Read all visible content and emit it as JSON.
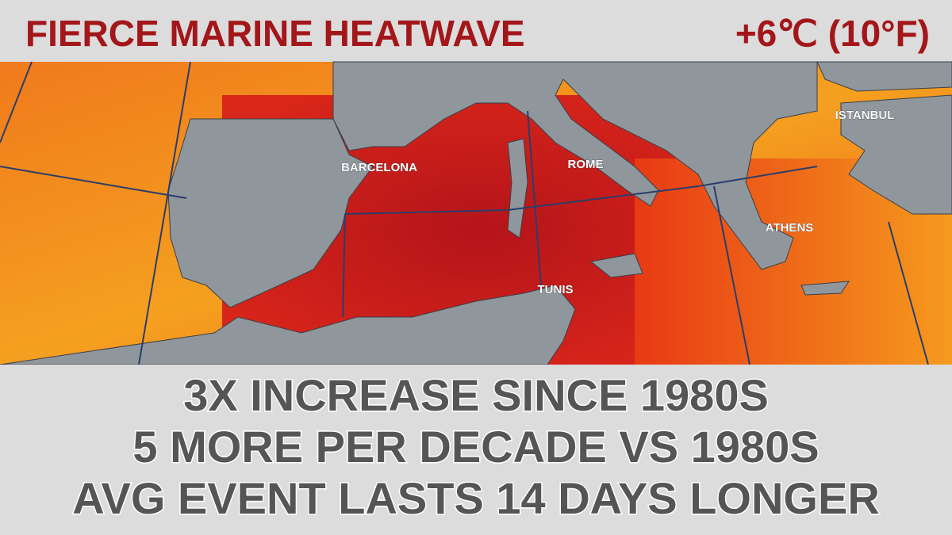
{
  "header": {
    "title": "FIERCE MARINE HEATWAVE",
    "anomaly": "+6℃ (10°F)"
  },
  "map": {
    "cities": [
      "BARCELONA",
      "ROME",
      "ISTANBUL",
      "ATHENS",
      "TUNIS"
    ]
  },
  "facts": [
    "3X INCREASE SINCE 1980S",
    "5 MORE PER DECADE VS 1980S",
    "AVG EVENT LASTS 14 DAYS LONGER"
  ]
}
